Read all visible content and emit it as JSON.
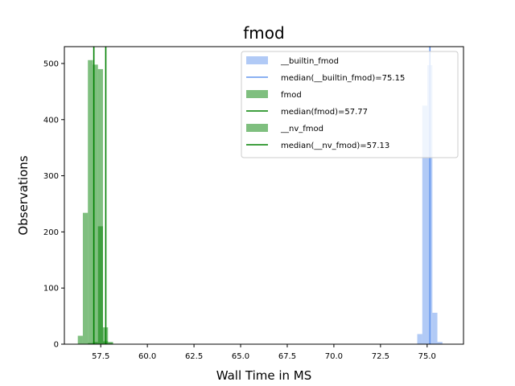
{
  "chart_data": {
    "type": "bar",
    "title": "fmod",
    "xlabel": "Wall Time in MS",
    "ylabel": "Observations",
    "xlim": [
      55.55,
      76.95
    ],
    "ylim": [
      0,
      530
    ],
    "x_ticks": [
      "57.5",
      "60.0",
      "62.5",
      "65.0",
      "67.5",
      "70.0",
      "72.5",
      "75.0"
    ],
    "x_tick_values": [
      57.5,
      60.0,
      62.5,
      65.0,
      67.5,
      70.0,
      72.5,
      75.0
    ],
    "y_ticks": [
      "0",
      "100",
      "200",
      "300",
      "400",
      "500"
    ],
    "y_tick_values": [
      0,
      100,
      200,
      300,
      400,
      500
    ],
    "legend_position": "top-right",
    "series": [
      {
        "name": "__builtin_fmod",
        "color": "#6495ed",
        "alpha": 0.5,
        "bin_width": 0.27,
        "bins": [
          {
            "x": 74.47,
            "count": 18
          },
          {
            "x": 74.74,
            "count": 425
          },
          {
            "x": 75.01,
            "count": 497
          },
          {
            "x": 75.28,
            "count": 56
          },
          {
            "x": 75.55,
            "count": 4
          }
        ],
        "median": 75.15,
        "median_label": "median(__builtin_fmod)=75.15",
        "median_color": "#6495ed"
      },
      {
        "name": "fmod",
        "color": "#008000",
        "alpha": 0.5,
        "bin_width": 0.27,
        "bins": [
          {
            "x": 56.27,
            "count": 15
          },
          {
            "x": 56.54,
            "count": 234
          },
          {
            "x": 56.81,
            "count": 506
          },
          {
            "x": 57.08,
            "count": 498
          },
          {
            "x": 57.35,
            "count": 490
          },
          {
            "x": 57.62,
            "count": 5
          },
          {
            "x": 57.89,
            "count": 2
          }
        ],
        "median": 57.77,
        "median_label": "median(fmod)=57.77",
        "median_color": "#008000"
      },
      {
        "name": "__nv_fmod",
        "color": "#008000",
        "alpha": 0.5,
        "bin_width": 0.27,
        "bins": [
          {
            "x": 56.81,
            "count": 2
          },
          {
            "x": 57.08,
            "count": 4
          },
          {
            "x": 57.35,
            "count": 210
          },
          {
            "x": 57.62,
            "count": 30
          },
          {
            "x": 57.89,
            "count": 4
          }
        ],
        "median": 57.13,
        "median_label": "median(__nv_fmod)=57.13",
        "median_color": "#008000"
      }
    ]
  }
}
